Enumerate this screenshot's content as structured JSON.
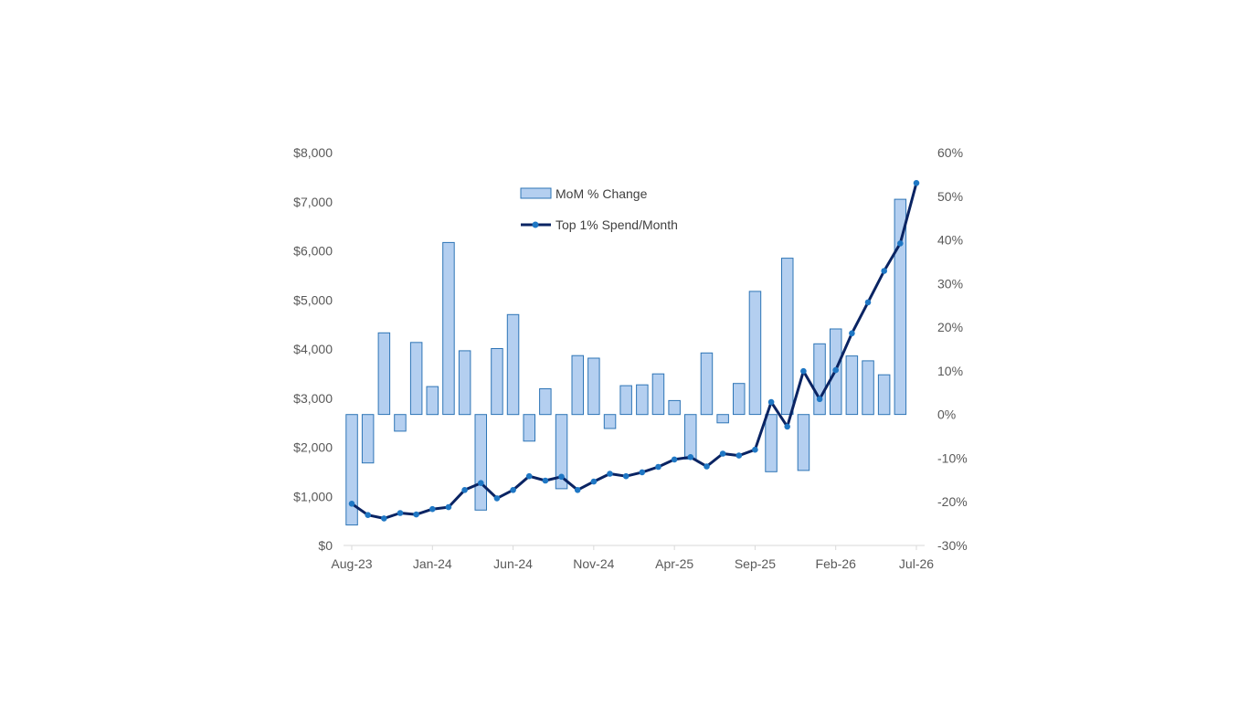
{
  "chart_data": {
    "type": "bar+line",
    "x": [
      "Aug-23",
      "Sep-23",
      "Oct-23",
      "Nov-23",
      "Dec-23",
      "Jan-24",
      "Feb-24",
      "Mar-24",
      "Apr-24",
      "May-24",
      "Jun-24",
      "Jul-24",
      "Aug-24",
      "Sep-24",
      "Oct-24",
      "Nov-24",
      "Dec-24",
      "Jan-25",
      "Feb-25",
      "Mar-25",
      "Apr-25",
      "May-25",
      "Jun-25",
      "Jul-25",
      "Aug-25",
      "Sep-25",
      "Oct-25",
      "Nov-25",
      "Dec-25",
      "Jan-26",
      "Feb-26",
      "Mar-26",
      "Apr-26",
      "May-26",
      "Jun-26",
      "Jul-26"
    ],
    "x_tick_labels": [
      "Aug-23",
      "Jan-24",
      "Jun-24",
      "Nov-24",
      "Apr-25",
      "Sep-25",
      "Feb-26",
      "Jul-26"
    ],
    "series": [
      {
        "name": "MoM % Change",
        "type": "bar",
        "axis": "right",
        "color": "#b4cff0",
        "edge_color": "#2e75b6",
        "values": [
          -25.3,
          -11.1,
          18.7,
          -3.8,
          16.5,
          6.4,
          39.4,
          14.6,
          -21.9,
          15.1,
          22.9,
          -6.1,
          5.9,
          -17.0,
          13.5,
          12.9,
          -3.2,
          6.6,
          6.8,
          9.3,
          3.2,
          -10.2,
          14.1,
          -1.9,
          7.1,
          28.2,
          -13.1,
          35.8,
          -12.8,
          16.2,
          19.6,
          13.4,
          12.3,
          9.1,
          49.3,
          0
        ]
      },
      {
        "name": "Top 1% Spend/Month",
        "type": "line",
        "axis": "left",
        "color": "#0a2463",
        "marker_color": "#1f77c4",
        "values": [
          850,
          620,
          550,
          660,
          630,
          740,
          780,
          1130,
          1270,
          960,
          1130,
          1410,
          1320,
          1400,
          1130,
          1300,
          1460,
          1410,
          1490,
          1600,
          1750,
          1800,
          1610,
          1870,
          1830,
          1950,
          2920,
          2420,
          3550,
          2980,
          3570,
          4320,
          4950,
          5590,
          6150,
          7380
        ]
      }
    ],
    "y_left": {
      "min": 0,
      "max": 8000,
      "step": 1000,
      "tick_labels": [
        "$0",
        "$1,000",
        "$2,000",
        "$3,000",
        "$4,000",
        "$5,000",
        "$6,000",
        "$7,000",
        "$8,000"
      ]
    },
    "y_right": {
      "min": -30,
      "max": 60,
      "step": 10,
      "tick_labels": [
        "-30%",
        "-20%",
        "-10%",
        "0%",
        "10%",
        "20%",
        "30%",
        "40%",
        "50%",
        "60%"
      ]
    },
    "legend": {
      "placement": "top-left",
      "items": [
        {
          "label": "MoM % Change",
          "kind": "bar"
        },
        {
          "label": "Top 1% Spend/Month",
          "kind": "line"
        }
      ]
    },
    "grid": false,
    "title": "",
    "xlabel": "",
    "ylabel": ""
  }
}
